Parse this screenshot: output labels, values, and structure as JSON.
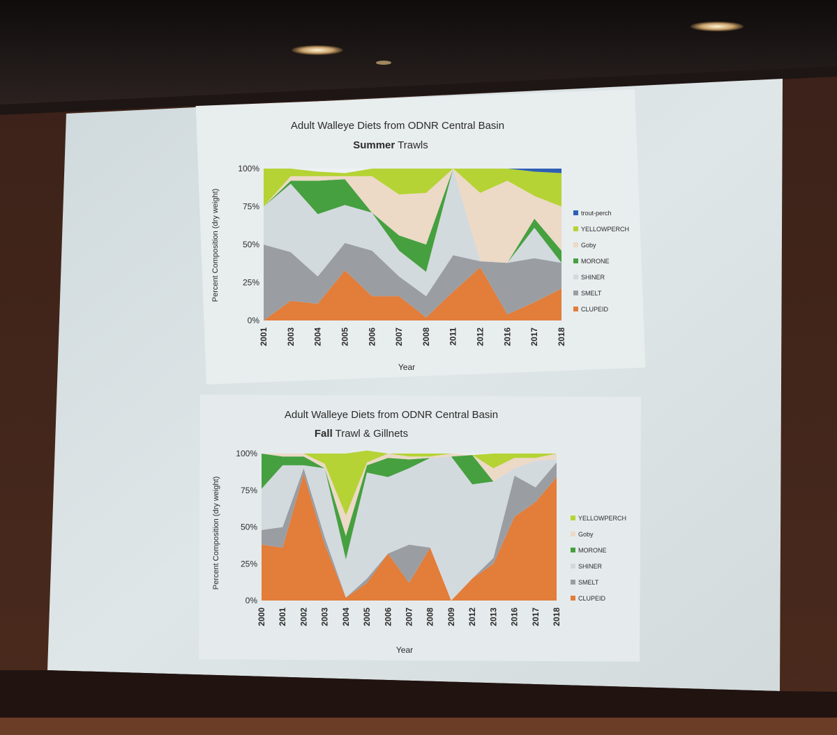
{
  "colors": {
    "trout_perch": "#2f5fb3",
    "yellowperch": "#b5d334",
    "goby": "#ecd9c6",
    "morone": "#46a040",
    "shiner": "#d3dade",
    "smelt": "#9a9ea3",
    "clupeid": "#e27d3a",
    "slide_bg": "#e7eced",
    "axis_text": "#2b2b2b"
  },
  "legend_icons": [
    "square-marker-icon"
  ],
  "chart_data": [
    {
      "type": "area",
      "stacked": true,
      "title": "Adult Walleye Diets from ODNR Central Basin",
      "subtitle_bold": "Summer",
      "subtitle_rest": " Trawls",
      "xlabel": "Year",
      "ylabel": "Percent Composition (dry weight)",
      "ylim": [
        0,
        100
      ],
      "yticks": [
        "0%",
        "25%",
        "50%",
        "75%",
        "100%"
      ],
      "legend_position": "right",
      "categories": [
        "2001",
        "2003",
        "2004",
        "2005",
        "2006",
        "2007",
        "2008",
        "2011",
        "2012",
        "2016",
        "2017",
        "2018"
      ],
      "series": [
        {
          "name": "CLUPEID",
          "color_key": "clupeid",
          "values": [
            0,
            13,
            11,
            33,
            16,
            16,
            2,
            19,
            35,
            4,
            12,
            21
          ]
        },
        {
          "name": "SMELT",
          "color_key": "smelt",
          "values": [
            50,
            32,
            18,
            18,
            30,
            13,
            14,
            24,
            4,
            34,
            29,
            17
          ]
        },
        {
          "name": "SHINER",
          "color_key": "shiner",
          "values": [
            25,
            45,
            41,
            25,
            25,
            17,
            16,
            57,
            0,
            0,
            20,
            0
          ]
        },
        {
          "name": "MORONE",
          "color_key": "morone",
          "values": [
            0,
            2,
            22,
            17,
            0,
            10,
            18,
            0,
            0,
            0,
            6,
            8
          ]
        },
        {
          "name": "Goby",
          "color_key": "goby",
          "values": [
            0,
            3,
            3,
            2,
            24,
            27,
            34,
            0,
            45,
            54,
            15,
            29
          ]
        },
        {
          "name": "YELLOWPERCH",
          "color_key": "yellowperch",
          "values": [
            25,
            5,
            3,
            2,
            5,
            17,
            16,
            0,
            16,
            8,
            16,
            22
          ]
        },
        {
          "name": "trout-perch",
          "color_key": "trout_perch",
          "values": [
            0,
            0,
            0,
            0,
            0,
            0,
            0,
            0,
            0,
            0,
            2,
            3
          ]
        }
      ]
    },
    {
      "type": "area",
      "stacked": true,
      "title": "Adult Walleye Diets from ODNR Central Basin",
      "subtitle_bold": "Fall",
      "subtitle_rest": " Trawl & Gillnets",
      "xlabel": "Year",
      "ylabel": "Percent Composition (dry weight)",
      "ylim": [
        0,
        100
      ],
      "yticks": [
        "0%",
        "25%",
        "50%",
        "75%",
        "100%"
      ],
      "legend_position": "right",
      "categories": [
        "2000",
        "2001",
        "2002",
        "2003",
        "2004",
        "2005",
        "2006",
        "2007",
        "2008",
        "2009",
        "2012",
        "2013",
        "2016",
        "2017",
        "2018"
      ],
      "series": [
        {
          "name": "CLUPEID",
          "color_key": "clupeid",
          "values": [
            38,
            36,
            86,
            38,
            2,
            12,
            32,
            12,
            36,
            0,
            15,
            25,
            57,
            67,
            84
          ]
        },
        {
          "name": "SMELT",
          "color_key": "smelt",
          "values": [
            10,
            14,
            4,
            5,
            0,
            3,
            0,
            26,
            0,
            0,
            0,
            4,
            28,
            10,
            10
          ]
        },
        {
          "name": "SHINER",
          "color_key": "shiner",
          "values": [
            28,
            42,
            2,
            47,
            26,
            72,
            52,
            52,
            61,
            98,
            64,
            52,
            5,
            18,
            2
          ]
        },
        {
          "name": "MORONE",
          "color_key": "morone",
          "values": [
            24,
            6,
            6,
            0,
            16,
            5,
            13,
            6,
            0,
            0,
            20,
            0,
            0,
            0,
            0
          ]
        },
        {
          "name": "Goby",
          "color_key": "goby",
          "values": [
            0,
            2,
            2,
            3,
            14,
            2,
            3,
            2,
            1,
            2,
            0,
            9,
            7,
            2,
            4
          ]
        },
        {
          "name": "YELLOWPERCH",
          "color_key": "yellowperch",
          "values": [
            0,
            0,
            0,
            7,
            42,
            8,
            0,
            2,
            2,
            0,
            0,
            10,
            3,
            3,
            0
          ]
        }
      ]
    }
  ]
}
